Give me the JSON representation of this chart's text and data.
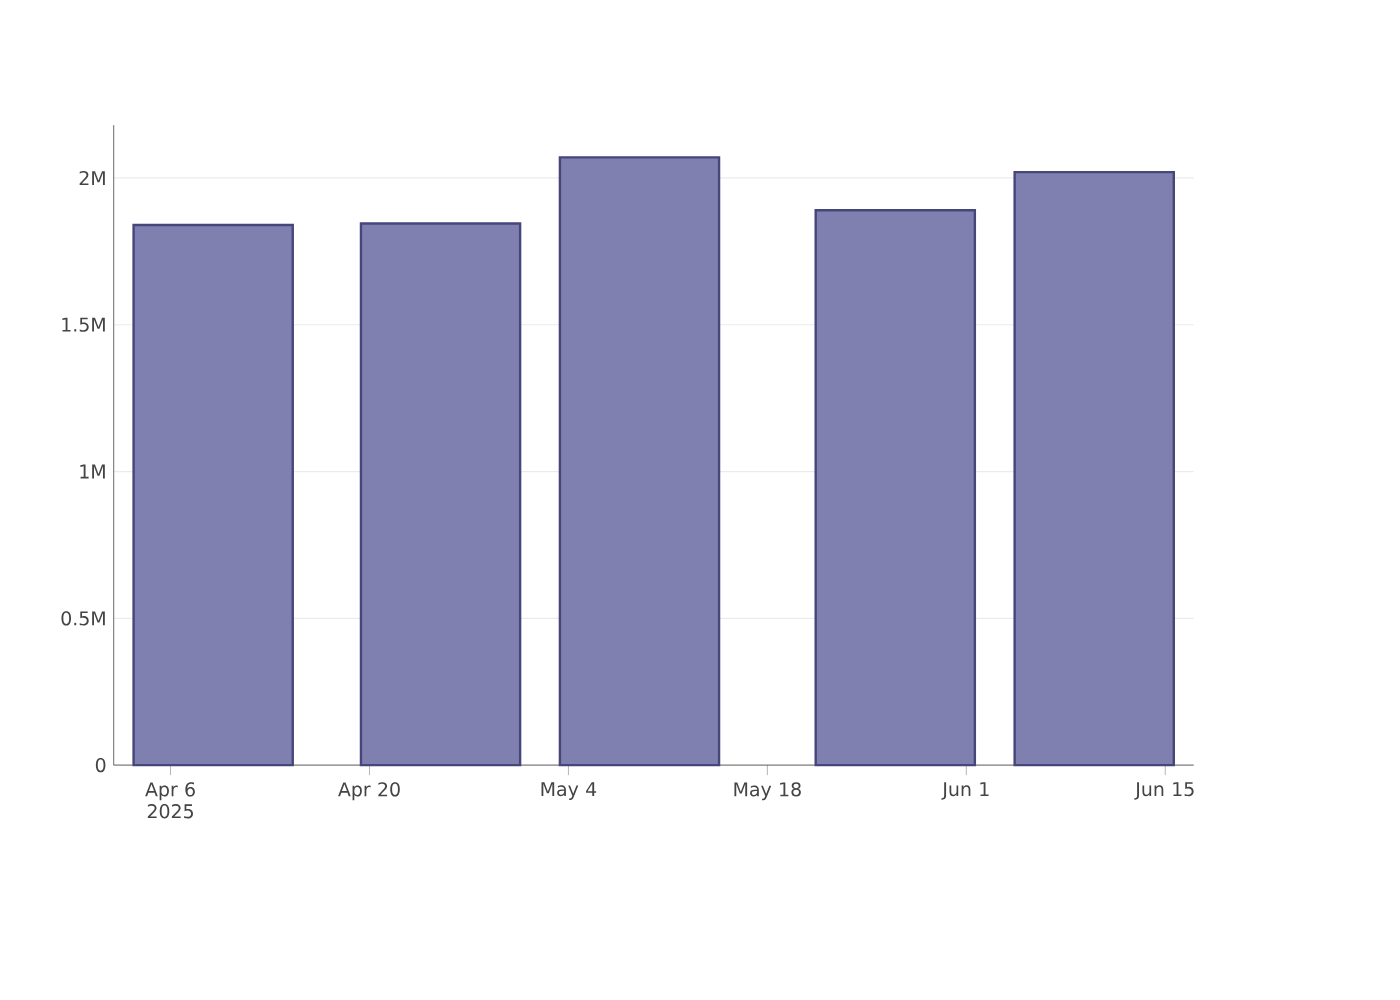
{
  "chart_data": {
    "type": "bar",
    "x": [
      "2025-04-09",
      "2025-04-25",
      "2025-05-09",
      "2025-05-27",
      "2025-06-10"
    ],
    "values": [
      1840000,
      1845000,
      2070000,
      1890000,
      2020000
    ],
    "color": "#8080b0",
    "xlim": [
      "2025-04-02",
      "2025-06-17"
    ],
    "xticks": [
      {
        "value": "2025-04-06",
        "label": "Apr 6 2025"
      },
      {
        "value": "2025-04-20",
        "label": "Apr 20"
      },
      {
        "value": "2025-05-04",
        "label": "May 4"
      },
      {
        "value": "2025-05-18",
        "label": "May 18"
      },
      {
        "value": "2025-06-01",
        "label": "Jun 1"
      },
      {
        "value": "2025-06-15",
        "label": "Jun 15"
      }
    ],
    "ylim": [
      0,
      2180000
    ],
    "yticks": [
      0,
      {
        "value": 500000,
        "label": "0.5M"
      },
      {
        "value": 1000000,
        "label": "1M"
      },
      {
        "value": 1500000,
        "label": "1.5M"
      },
      {
        "value": 2000000,
        "label": "2M"
      }
    ],
    "grid": "y"
  }
}
